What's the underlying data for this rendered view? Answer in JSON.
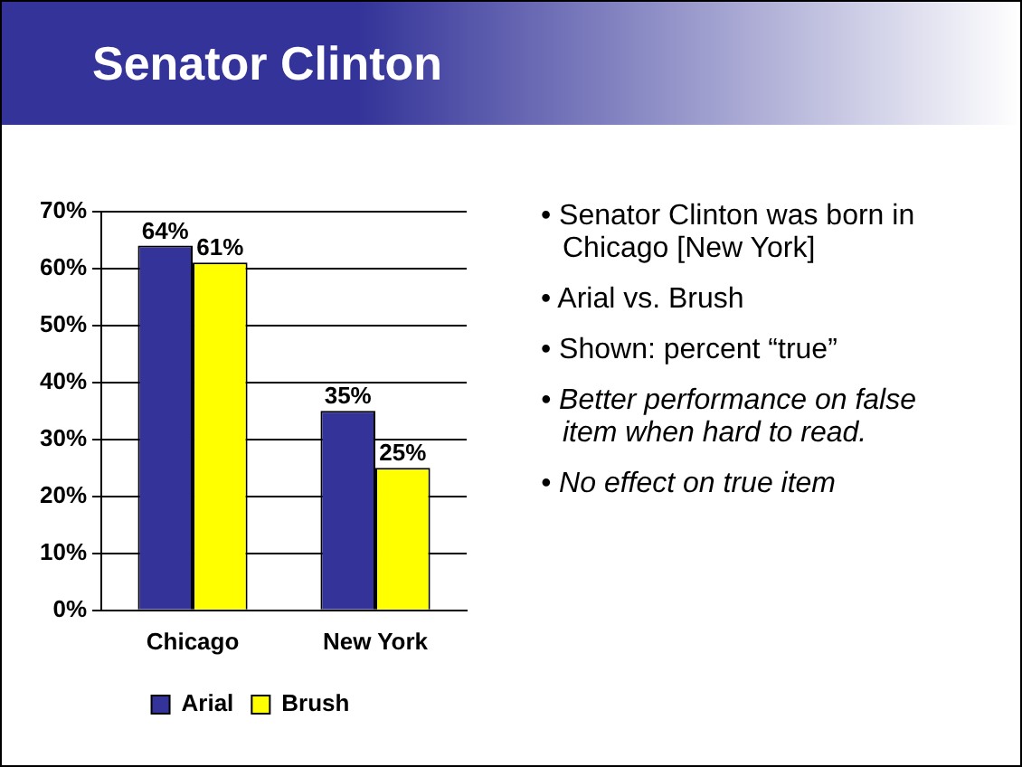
{
  "chart_data": {
    "type": "bar",
    "title": "Senator Clinton",
    "categories": [
      "Chicago",
      "New York"
    ],
    "series": [
      {
        "name": "Arial",
        "color": "#333399",
        "values": [
          64,
          35
        ],
        "value_labels": [
          "64%",
          "35%"
        ]
      },
      {
        "name": "Brush",
        "color": "#ffff00",
        "values": [
          61,
          25
        ],
        "value_labels": [
          "61%",
          "25%"
        ]
      }
    ],
    "ylim": [
      0,
      70
    ],
    "yticks": [
      {
        "value": 0,
        "label": "0%"
      },
      {
        "value": 10,
        "label": "10%"
      },
      {
        "value": 20,
        "label": "20%"
      },
      {
        "value": 30,
        "label": "30%"
      },
      {
        "value": 40,
        "label": "40%"
      },
      {
        "value": 50,
        "label": "50%"
      },
      {
        "value": 60,
        "label": "60%"
      },
      {
        "value": 70,
        "label": "70%"
      }
    ],
    "grid": "y",
    "legend": "bottom",
    "annotations": [
      "• Senator Clinton was born in Chicago [New York]",
      "• Arial vs. Brush",
      "• Shown: percent “true”",
      "• Better performance on false item when hard to read.",
      "• No effect on true item"
    ]
  }
}
